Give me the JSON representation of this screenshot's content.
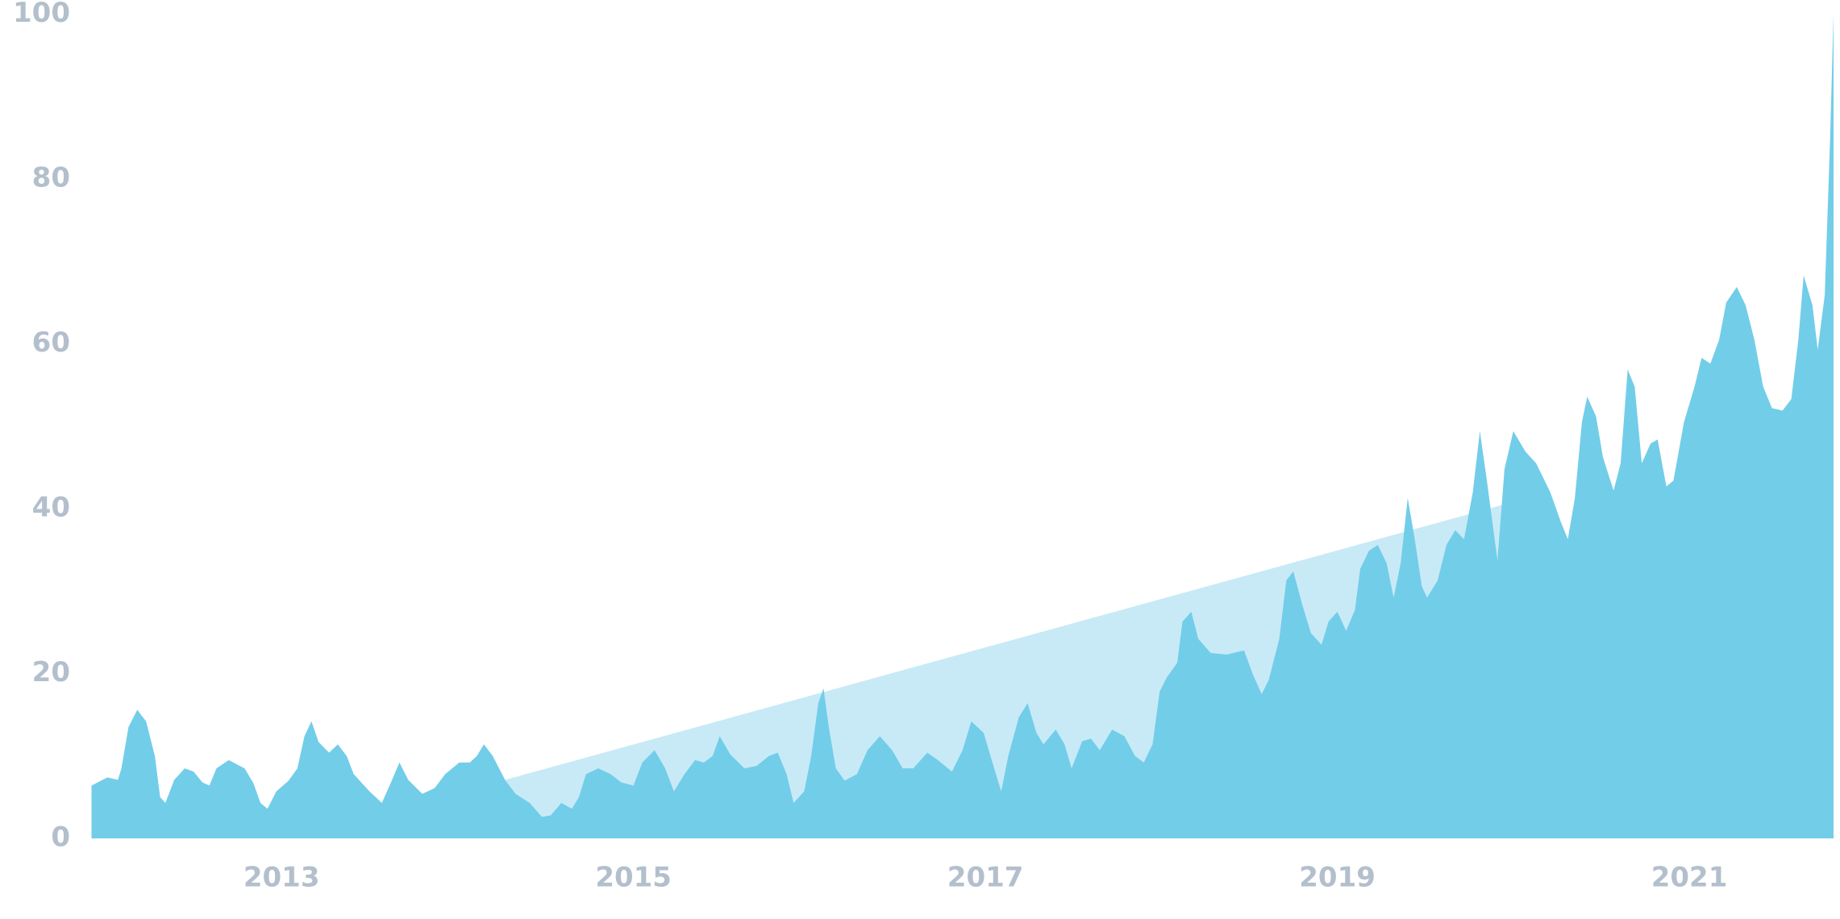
{
  "chart_data": {
    "type": "area",
    "x": [
      2011.92,
      2012.01,
      2012.07,
      2012.09,
      2012.13,
      2012.18,
      2012.23,
      2012.28,
      2012.31,
      2012.34,
      2012.39,
      2012.45,
      2012.5,
      2012.55,
      2012.59,
      2012.63,
      2012.7,
      2012.79,
      2012.84,
      2012.88,
      2012.92,
      2012.97,
      2013.04,
      2013.09,
      2013.13,
      2013.17,
      2013.21,
      2013.27,
      2013.32,
      2013.37,
      2013.41,
      2013.5,
      2013.57,
      2013.62,
      2013.67,
      2013.72,
      2013.8,
      2013.87,
      2013.93,
      2014.01,
      2014.07,
      2014.11,
      2014.15,
      2014.2,
      2014.27,
      2014.33,
      2014.41,
      2014.48,
      2014.53,
      2014.59,
      2014.65,
      2014.69,
      2014.73,
      2014.8,
      2014.87,
      2014.93,
      2015.0,
      2015.05,
      2015.12,
      2015.18,
      2015.23,
      2015.29,
      2015.35,
      2015.4,
      2015.45,
      2015.49,
      2015.55,
      2015.63,
      2015.7,
      2015.77,
      2015.82,
      2015.87,
      2015.91,
      2015.97,
      2016.01,
      2016.05,
      2016.08,
      2016.11,
      2016.15,
      2016.2,
      2016.27,
      2016.33,
      2016.4,
      2016.47,
      2016.53,
      2016.59,
      2016.67,
      2016.73,
      2016.81,
      2016.87,
      2016.92,
      2016.99,
      2017.04,
      2017.09,
      2017.13,
      2017.19,
      2017.24,
      2017.29,
      2017.33,
      2017.4,
      2017.45,
      2017.49,
      2017.55,
      2017.6,
      2017.65,
      2017.72,
      2017.79,
      2017.85,
      2017.9,
      2017.95,
      2017.99,
      2018.03,
      2018.09,
      2018.12,
      2018.17,
      2018.21,
      2018.28,
      2018.37,
      2018.47,
      2018.52,
      2018.57,
      2018.61,
      2018.67,
      2018.71,
      2018.75,
      2018.8,
      2018.85,
      2018.91,
      2018.95,
      2019.0,
      2019.05,
      2019.1,
      2019.13,
      2019.18,
      2019.23,
      2019.28,
      2019.32,
      2019.36,
      2019.4,
      2019.44,
      2019.48,
      2019.51,
      2019.57,
      2019.62,
      2019.67,
      2019.72,
      2019.77,
      2019.81,
      2019.85,
      2019.91,
      2019.95,
      2020.0,
      2020.07,
      2020.13,
      2020.21,
      2020.27,
      2020.31,
      2020.35,
      2020.39,
      2020.42,
      2020.47,
      2020.51,
      2020.57,
      2020.61,
      2020.65,
      2020.69,
      2020.73,
      2020.78,
      2020.82,
      2020.87,
      2020.91,
      2020.97,
      2021.03,
      2021.07,
      2021.12,
      2021.17,
      2021.21,
      2021.27,
      2021.32,
      2021.37,
      2021.42,
      2021.47,
      2021.53,
      2021.58,
      2021.62,
      2021.65,
      2021.7,
      2021.73,
      2021.77,
      2021.8,
      2021.82
    ],
    "series": [
      {
        "color": "#72cde9",
        "values": [
          6.4,
          7.4,
          7.1,
          8.5,
          13.5,
          15.6,
          14.2,
          10,
          5,
          4.3,
          7.1,
          8.5,
          8.1,
          6.8,
          6.4,
          8.5,
          9.5,
          8.5,
          6.7,
          4.3,
          3.6,
          5.7,
          7,
          8.5,
          12.4,
          14.2,
          11.7,
          10.4,
          11.4,
          10,
          7.8,
          5.7,
          4.3,
          6.7,
          9.2,
          7.1,
          5.4,
          6.1,
          7.8,
          9.2,
          9.2,
          10,
          11.4,
          10,
          7.1,
          5.4,
          4.3,
          2.6,
          2.8,
          4.3,
          3.6,
          5,
          7.8,
          8.5,
          7.8,
          6.8,
          6.4,
          9.2,
          10.7,
          8.5,
          5.7,
          7.8,
          9.5,
          9.2,
          10,
          12.4,
          10.2,
          8.5,
          8.8,
          10,
          10.4,
          7.8,
          4.3,
          5.7,
          10,
          16.4,
          18.2,
          13.5,
          8.5,
          7,
          7.8,
          10.7,
          12.4,
          10.7,
          8.5,
          8.5,
          10.4,
          9.5,
          8.1,
          10.7,
          14.2,
          12.8,
          9.2,
          5.7,
          10,
          14.7,
          16.4,
          12.8,
          11.4,
          13.2,
          11.4,
          8.5,
          11.8,
          12.1,
          10.7,
          13.2,
          12.4,
          10,
          9.2,
          11.4,
          17.8,
          19.5,
          21.3,
          26.3,
          27.5,
          24.2,
          22.5,
          22.3,
          22.8,
          19.9,
          17.5,
          19.2,
          24.2,
          31.3,
          32.4,
          28.4,
          24.9,
          23.5,
          26.3,
          27.5,
          25.2,
          27.7,
          32.7,
          34.9,
          35.6,
          33.4,
          29.2,
          33.4,
          41.3,
          36.3,
          30.6,
          29.2,
          31.3,
          35.6,
          37.4,
          36.3,
          42,
          49.4,
          43.4,
          33.7,
          44.8,
          49.4,
          46.9,
          45.5,
          42,
          38.4,
          36.3,
          41.3,
          50.5,
          53.6,
          51.2,
          46.2,
          42.2,
          45.5,
          56.9,
          54.8,
          45.5,
          47.9,
          48.4,
          42.7,
          43.4,
          50.5,
          54.8,
          58.3,
          57.6,
          60.5,
          65,
          66.9,
          64.7,
          60.5,
          54.8,
          52.2,
          51.9,
          53.3,
          60.5,
          68.3,
          64.7,
          59.3,
          65.9,
          84.6,
          100
        ]
      }
    ],
    "trend": {
      "color": "#c8eaf7",
      "x": [
        2014.27,
        2020.03
      ],
      "values": [
        7.1,
        41
      ]
    },
    "xlim": [
      2011.92,
      2021.82
    ],
    "xticks": [
      2013,
      2015,
      2017,
      2019,
      2021
    ],
    "ylim": [
      0,
      100
    ],
    "yticks": [
      0,
      20,
      40,
      60,
      80,
      100
    ],
    "grid": false
  }
}
